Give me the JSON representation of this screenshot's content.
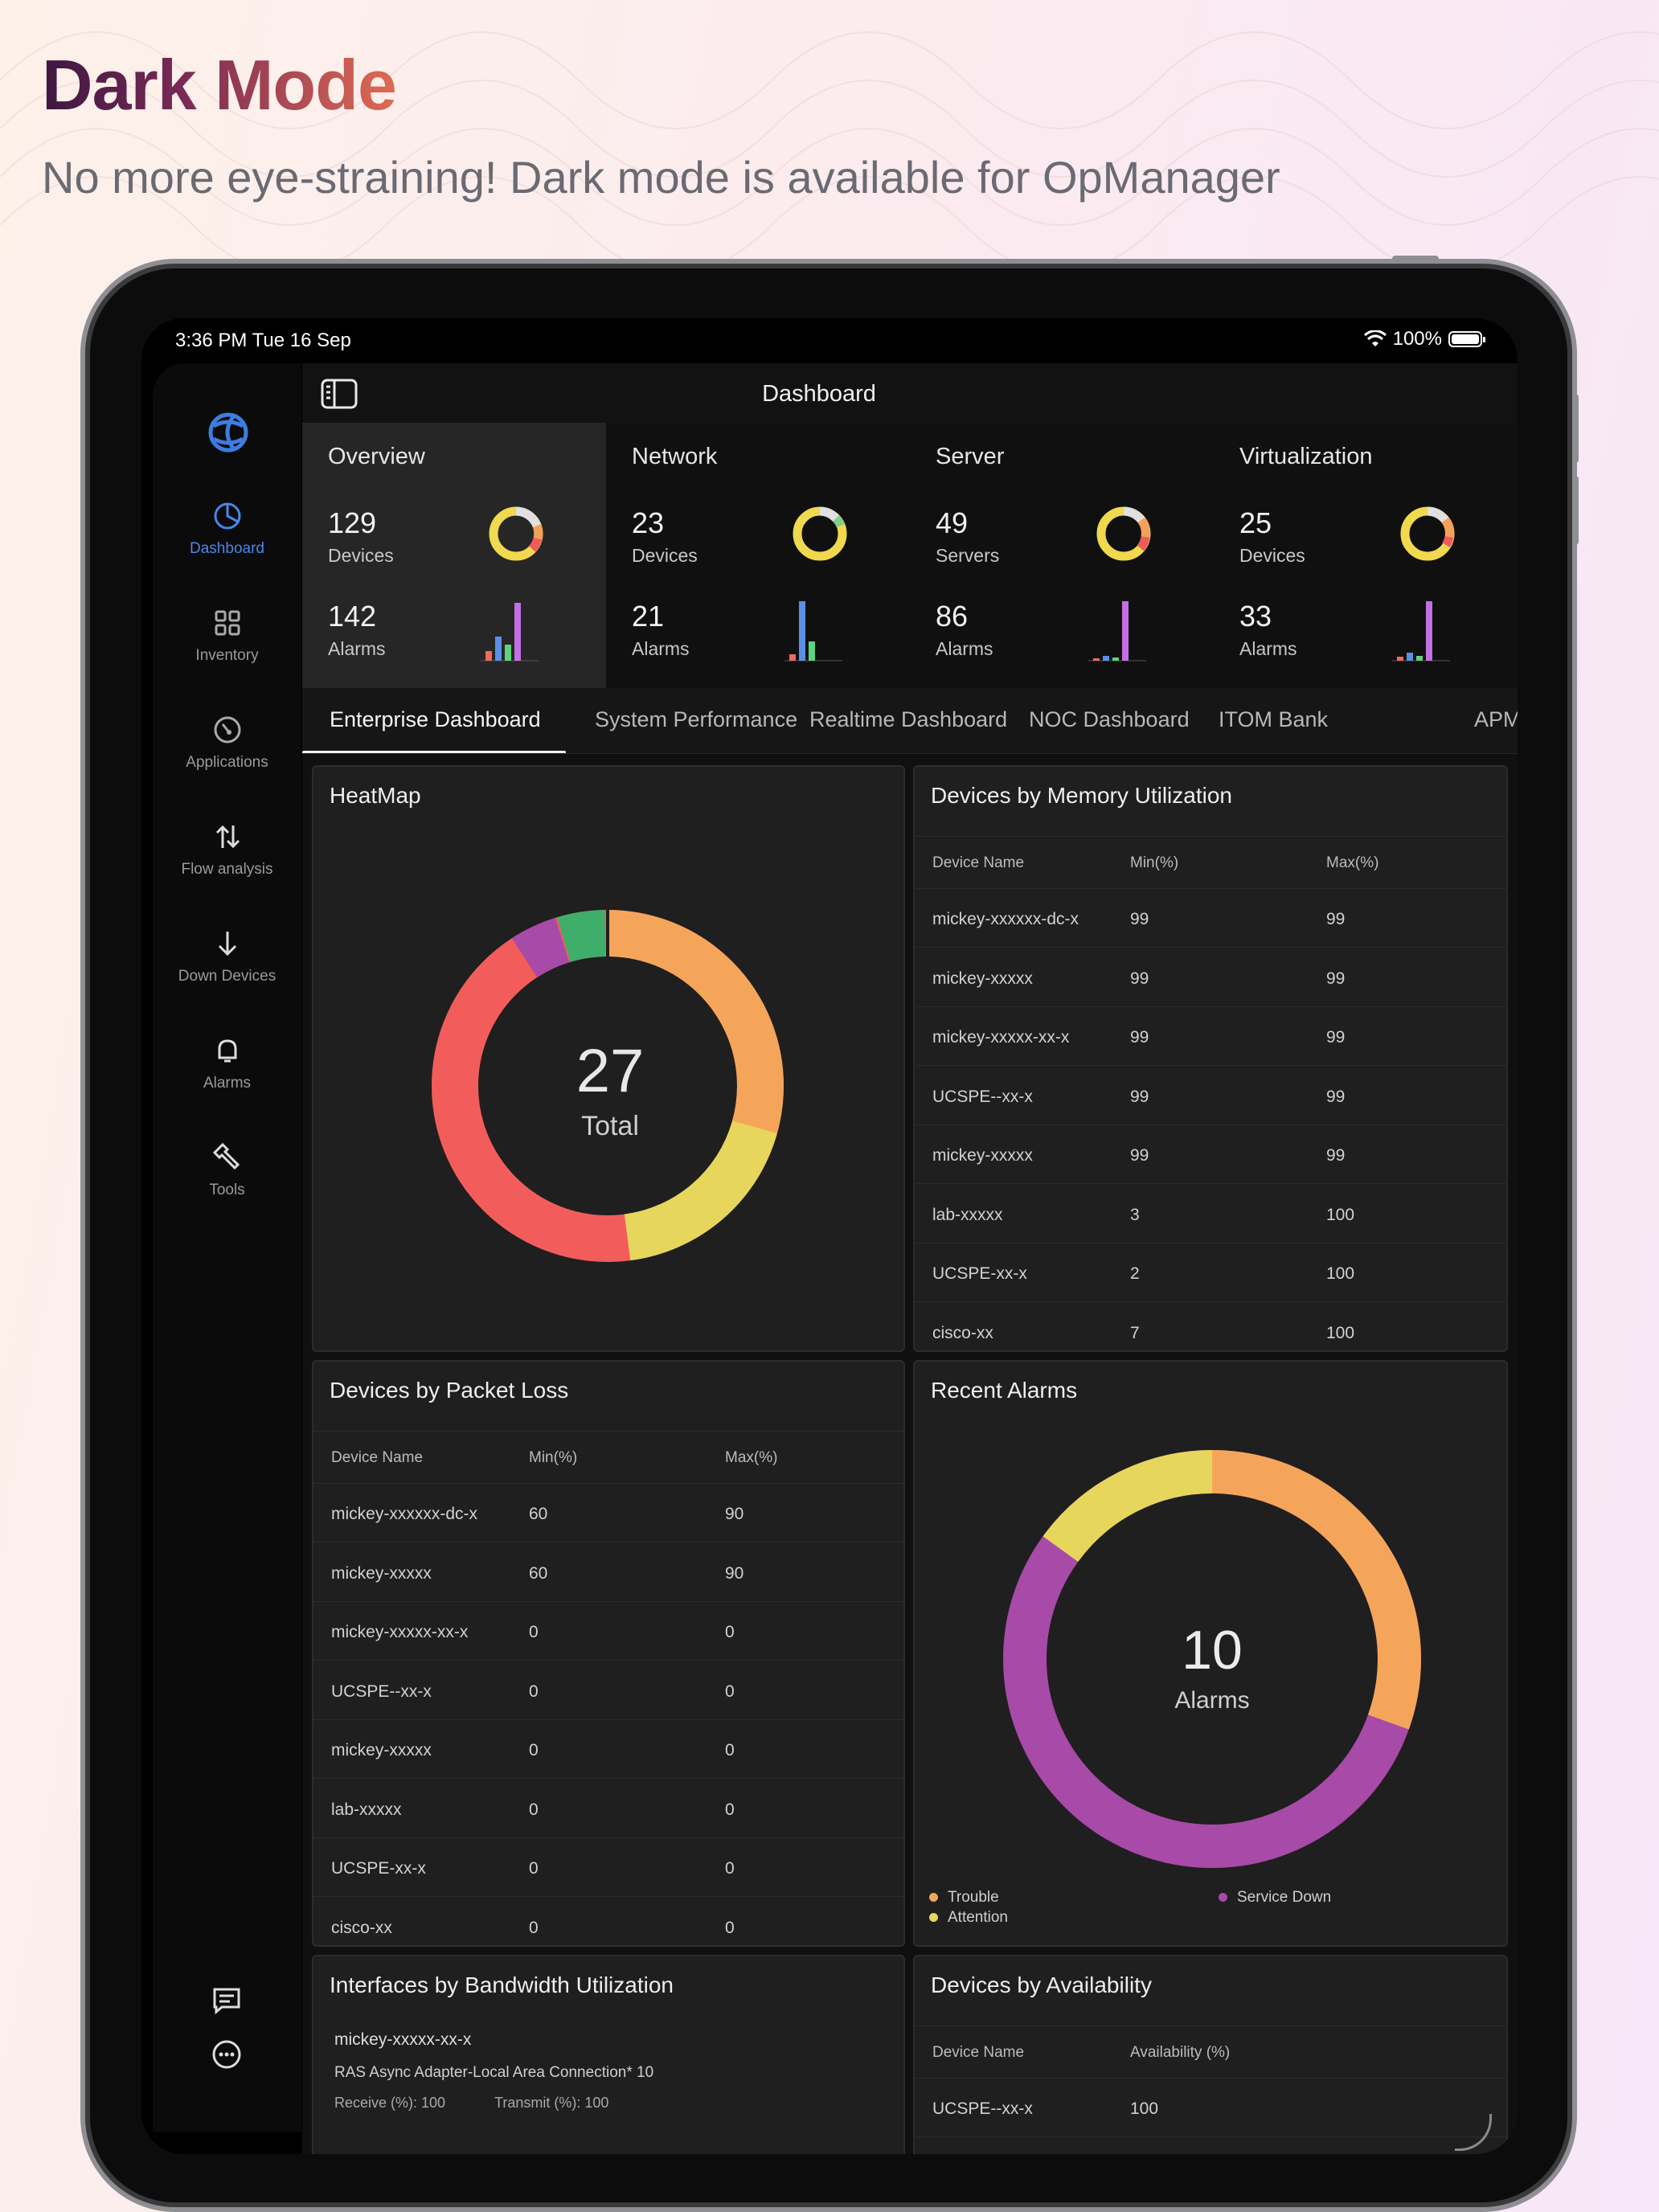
{
  "hero": {
    "title": "Dark Mode",
    "subtitle": "No more eye-straining!  Dark mode is available for OpManager"
  },
  "status_bar": {
    "time": "3:36 PM  Tue 16 Sep",
    "battery": "100%"
  },
  "sidebar": {
    "items": [
      {
        "label": "Dashboard",
        "icon": "pie-chart-icon",
        "active": true
      },
      {
        "label": "Inventory",
        "icon": "grid-icon"
      },
      {
        "label": "Applications",
        "icon": "gauge-icon"
      },
      {
        "label": "Flow analysis",
        "icon": "arrows-up-down-icon"
      },
      {
        "label": "Down Devices",
        "icon": "arrow-down-icon"
      },
      {
        "label": "Alarms",
        "icon": "bell-icon"
      },
      {
        "label": "Tools",
        "icon": "wrench-icon"
      }
    ]
  },
  "topbar": {
    "title": "Dashboard"
  },
  "summary": [
    {
      "title": "Overview",
      "count1": "129",
      "label1": "Devices",
      "count2": "142",
      "label2": "Alarms",
      "active": true
    },
    {
      "title": "Network",
      "count1": "23",
      "label1": "Devices",
      "count2": "21",
      "label2": "Alarms"
    },
    {
      "title": "Server",
      "count1": "49",
      "label1": "Servers",
      "count2": "86",
      "label2": "Alarms"
    },
    {
      "title": "Virtualization",
      "count1": "25",
      "label1": "Devices",
      "count2": "33",
      "label2": "Alarms"
    }
  ],
  "tabs": [
    "Enterprise Dashboard",
    "System Performance",
    "Realtime Dashboard",
    "NOC Dashboard",
    "ITOM  Bank",
    "APM"
  ],
  "heatmap": {
    "title": "HeatMap",
    "center_value": "27",
    "center_label": "Total",
    "colors": {
      "orange": "#f5a55a",
      "yellow": "#e6d65c",
      "red": "#f25d5b",
      "purple": "#a84aa8",
      "green": "#3fae6a"
    }
  },
  "memory": {
    "title": "Devices by Memory Utilization",
    "headers": [
      "Device Name",
      "Min(%)",
      "Max(%)"
    ],
    "rows": [
      [
        "mickey-xxxxxx-dc-x",
        "99",
        "99"
      ],
      [
        "mickey-xxxxx",
        "99",
        "99"
      ],
      [
        "mickey-xxxxx-xx-x",
        "99",
        "99"
      ],
      [
        "UCSPE--xx-x",
        "99",
        "99"
      ],
      [
        "mickey-xxxxx",
        "99",
        "99"
      ],
      [
        "lab-xxxxx",
        "3",
        "100"
      ],
      [
        "UCSPE-xx-x",
        "2",
        "100"
      ],
      [
        "cisco-xx",
        "7",
        "100"
      ]
    ]
  },
  "packet_loss": {
    "title": "Devices by Packet Loss",
    "headers": [
      "Device Name",
      "Min(%)",
      "Max(%)"
    ],
    "rows": [
      [
        "mickey-xxxxxx-dc-x",
        "60",
        "90"
      ],
      [
        "mickey-xxxxx",
        "60",
        "90"
      ],
      [
        "mickey-xxxxx-xx-x",
        "0",
        "0"
      ],
      [
        "UCSPE--xx-x",
        "0",
        "0"
      ],
      [
        "mickey-xxxxx",
        "0",
        "0"
      ],
      [
        "lab-xxxxx",
        "0",
        "0"
      ],
      [
        "UCSPE-xx-x",
        "0",
        "0"
      ],
      [
        "cisco-xx",
        "0",
        "0"
      ]
    ]
  },
  "recent_alarms": {
    "title": "Recent Alarms",
    "center_value": "10",
    "center_label": "Alarms",
    "legend": [
      {
        "label": "Trouble",
        "color": "#f5a55a"
      },
      {
        "label": "Attention",
        "color": "#e6d65c"
      },
      {
        "label": "Service Down",
        "color": "#a84aa8"
      }
    ]
  },
  "bandwidth": {
    "title": "Interfaces by Bandwidth Utilization",
    "name": "mickey-xxxxx-xx-x",
    "sub": "RAS Async Adapter-Local Area Connection* 10",
    "receive": "Receive (%): 100",
    "transmit": "Transmit (%): 100"
  },
  "availability": {
    "title": "Devices by Availability",
    "headers": [
      "Device Name",
      "Availability (%)"
    ],
    "rows": [
      [
        "UCSPE--xx-x",
        "100"
      ]
    ]
  }
}
